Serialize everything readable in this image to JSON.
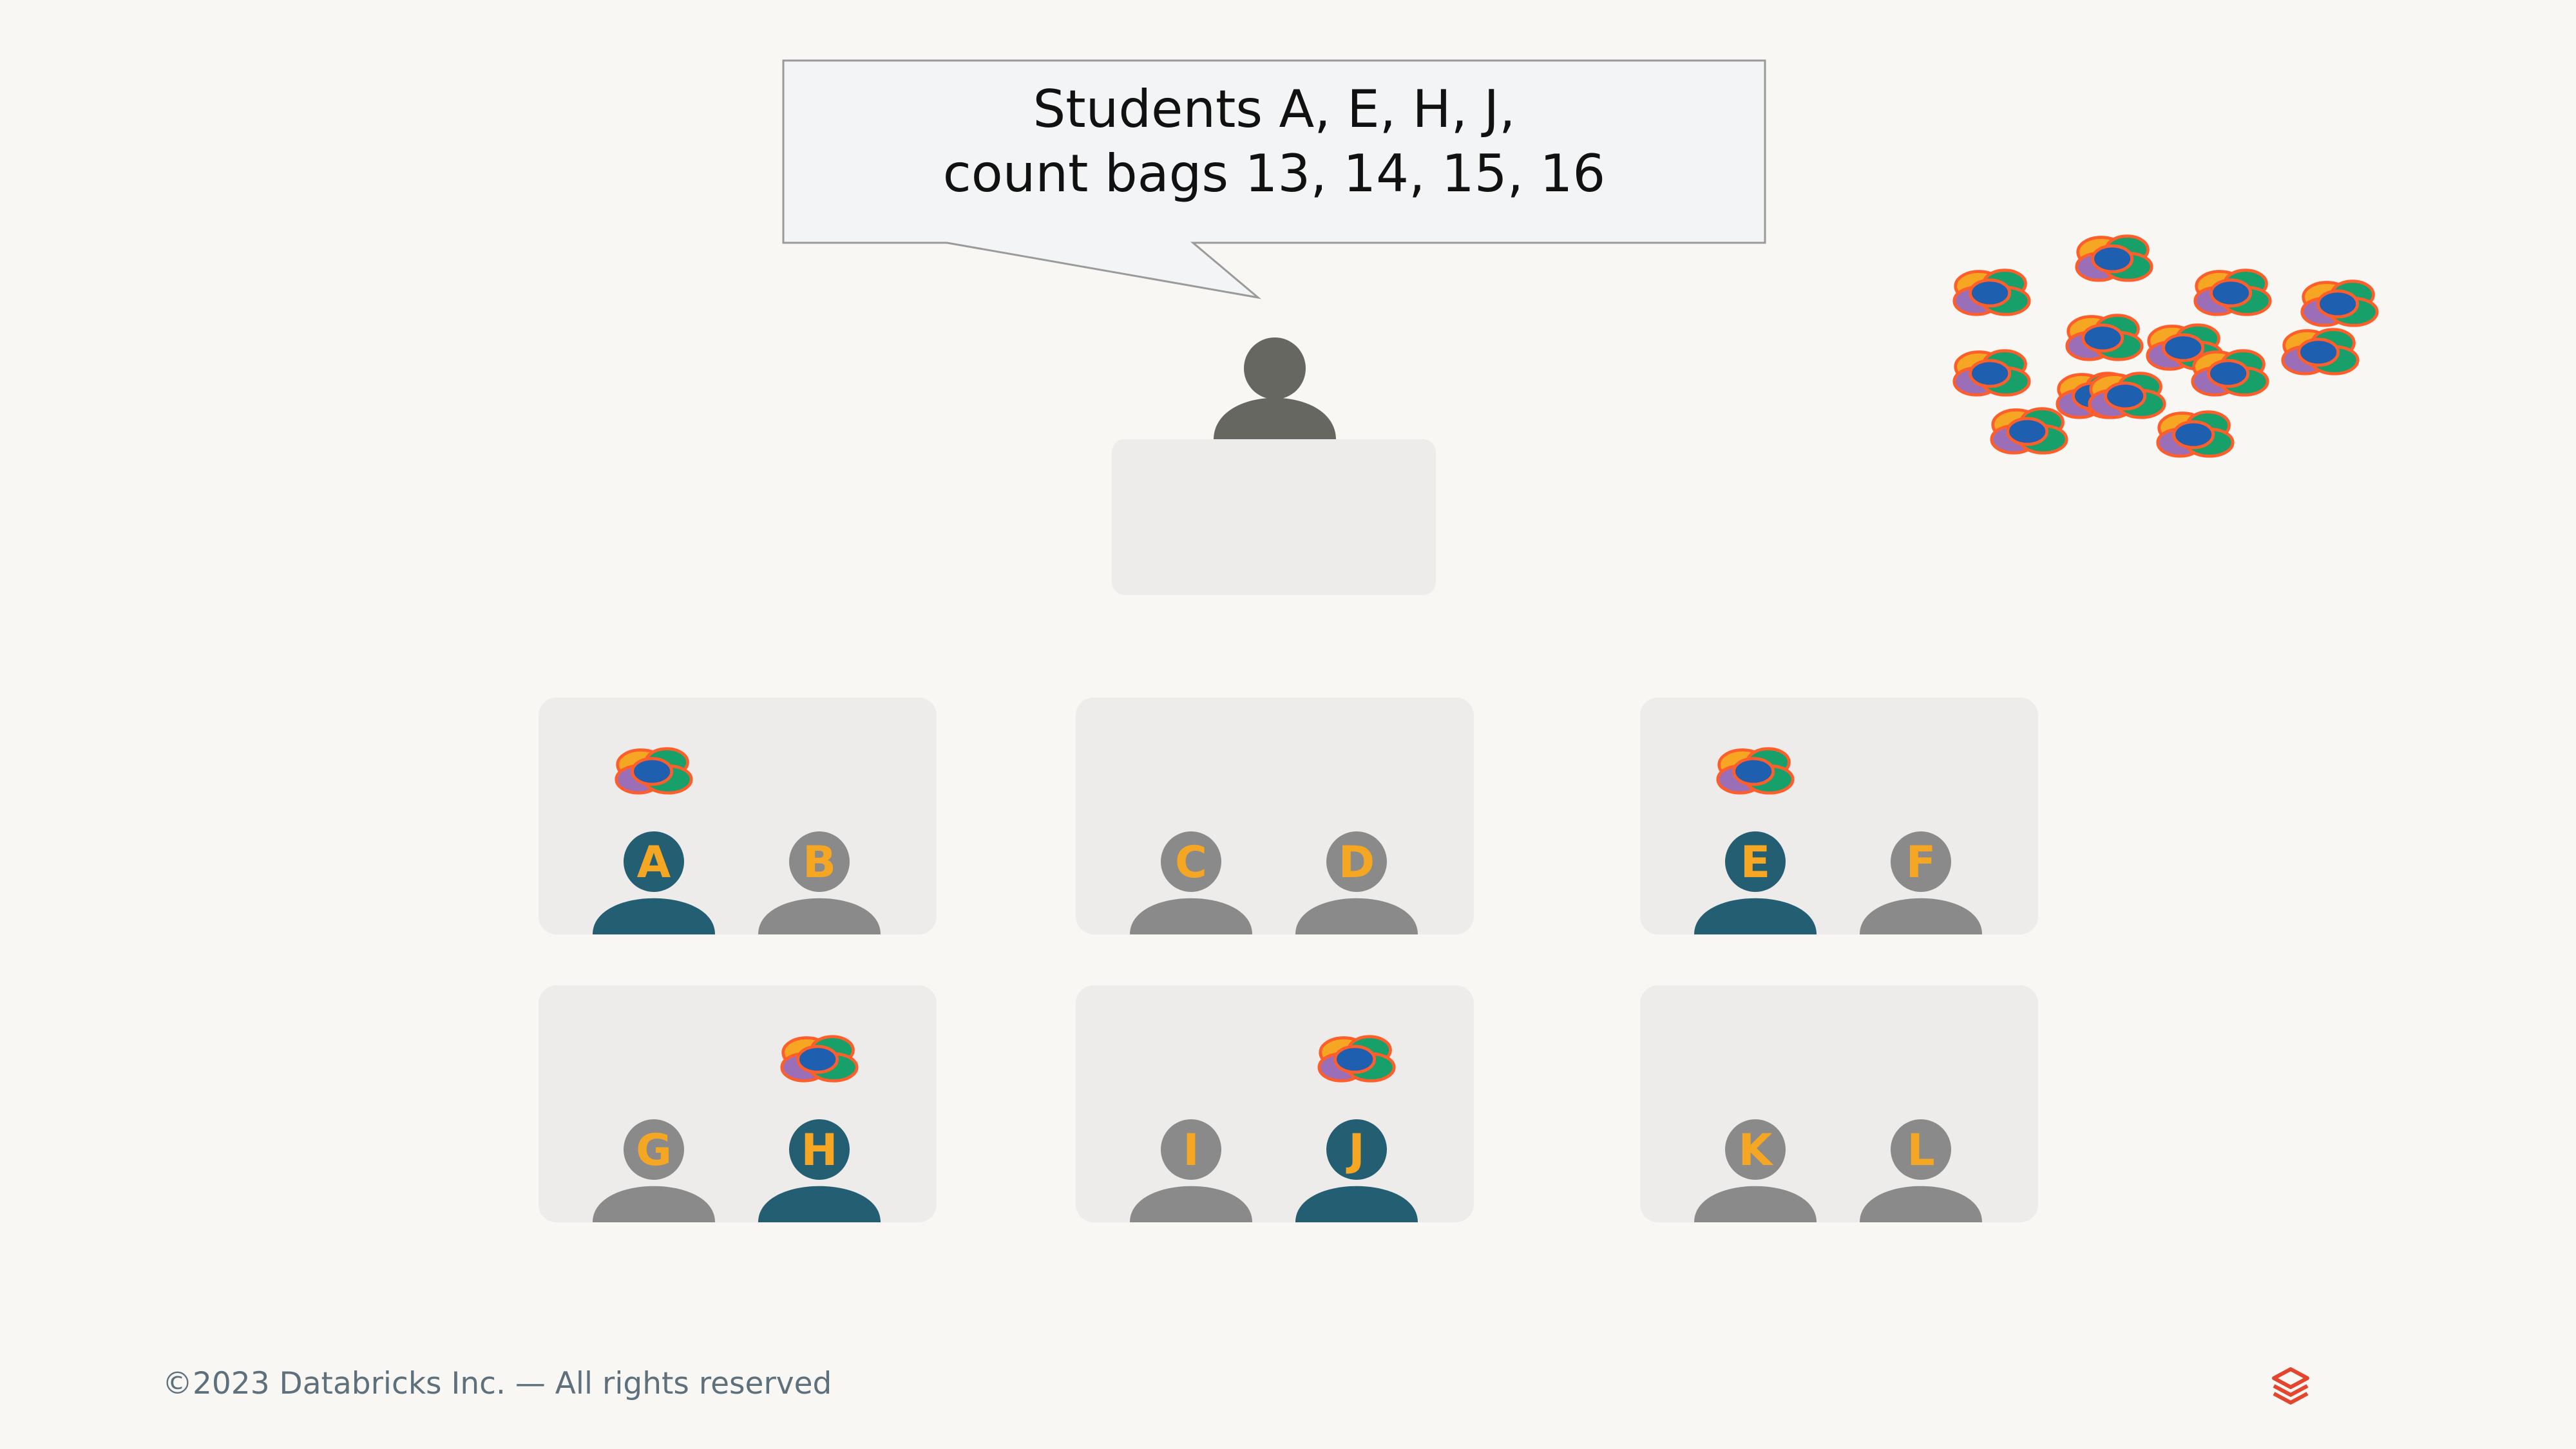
{
  "callout": {
    "line1": "Students A, E, H, J,",
    "line2": "count bags 13, 14, 15, 16"
  },
  "teacher": {
    "name": "teacher"
  },
  "bag_pile": {
    "count": 13
  },
  "tables": [
    {
      "id": "table-1",
      "students": [
        {
          "letter": "A",
          "active": true,
          "has_bag": true
        },
        {
          "letter": "B",
          "active": false,
          "has_bag": false
        }
      ]
    },
    {
      "id": "table-2",
      "students": [
        {
          "letter": "C",
          "active": false,
          "has_bag": false
        },
        {
          "letter": "D",
          "active": false,
          "has_bag": false
        }
      ]
    },
    {
      "id": "table-3",
      "students": [
        {
          "letter": "E",
          "active": true,
          "has_bag": true
        },
        {
          "letter": "F",
          "active": false,
          "has_bag": false
        }
      ]
    },
    {
      "id": "table-4",
      "students": [
        {
          "letter": "G",
          "active": false,
          "has_bag": false
        },
        {
          "letter": "H",
          "active": true,
          "has_bag": true
        }
      ]
    },
    {
      "id": "table-5",
      "students": [
        {
          "letter": "I",
          "active": false,
          "has_bag": false
        },
        {
          "letter": "J",
          "active": true,
          "has_bag": true
        }
      ]
    },
    {
      "id": "table-6",
      "students": [
        {
          "letter": "K",
          "active": false,
          "has_bag": false
        },
        {
          "letter": "L",
          "active": false,
          "has_bag": false
        }
      ]
    }
  ],
  "footer": {
    "copyright": "©2023 Databricks Inc. — All rights reserved",
    "logo": "databricks-logo-icon"
  },
  "colors": {
    "background": "#f8f7f4",
    "table": "#edecea",
    "active_student": "#245e72",
    "inactive_student": "#8a8a8a",
    "teacher": "#676762",
    "letter": "#f5a623",
    "logo": "#e5452f",
    "footer_text": "#5e707c"
  }
}
